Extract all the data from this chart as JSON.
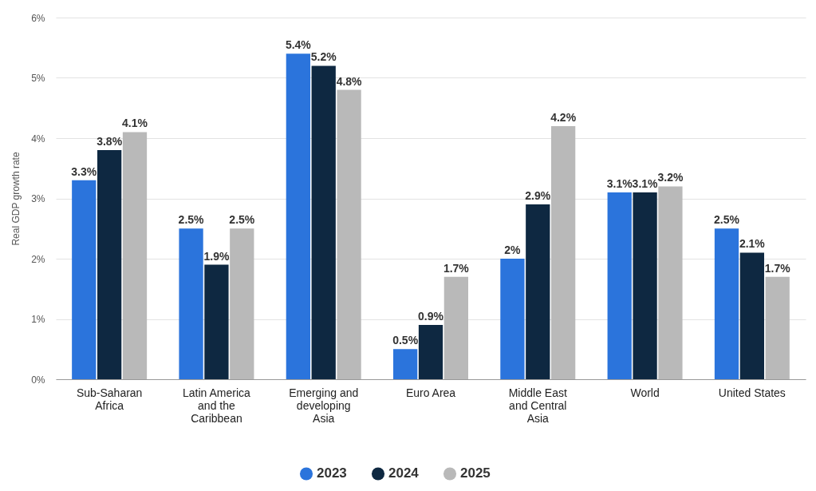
{
  "chart_data": {
    "type": "bar",
    "ylabel": "Real GDP growth rate",
    "categories": [
      "Sub-Saharan Africa",
      "Latin America and the Caribbean",
      "Emerging and developing Asia",
      "Euro Area",
      "Middle East and Central Asia",
      "World",
      "United States"
    ],
    "series": [
      {
        "name": "2023",
        "color": "#2b74dc",
        "values": [
          3.3,
          2.5,
          5.4,
          0.5,
          2,
          3.1,
          2.5
        ],
        "value_labels": [
          "3.3%",
          "2.5%",
          "5.4%",
          "0.5%",
          "2%",
          "3.1%",
          "2.5%"
        ]
      },
      {
        "name": "2024",
        "color": "#0e2841",
        "values": [
          3.8,
          1.9,
          5.2,
          0.9,
          2.9,
          3.1,
          2.1
        ],
        "value_labels": [
          "3.8%",
          "1.9%",
          "5.2%",
          "0.9%",
          "2.9%",
          "3.1%",
          "2.1%"
        ]
      },
      {
        "name": "2025",
        "color": "#b9b9b9",
        "values": [
          4.1,
          2.5,
          4.8,
          1.7,
          4.2,
          3.2,
          1.7
        ],
        "value_labels": [
          "4.1%",
          "2.5%",
          "4.8%",
          "1.7%",
          "4.2%",
          "3.2%",
          "1.7%"
        ]
      }
    ],
    "ylim": [
      0,
      6
    ],
    "yticks": [
      {
        "value": 0,
        "label": "0%"
      },
      {
        "value": 1,
        "label": "1%"
      },
      {
        "value": 2,
        "label": "2%"
      },
      {
        "value": 3,
        "label": "3%"
      },
      {
        "value": 4,
        "label": "4%"
      },
      {
        "value": 5,
        "label": "5%"
      },
      {
        "value": 6,
        "label": "6%"
      }
    ],
    "grid": "y",
    "legend": "bottom"
  }
}
